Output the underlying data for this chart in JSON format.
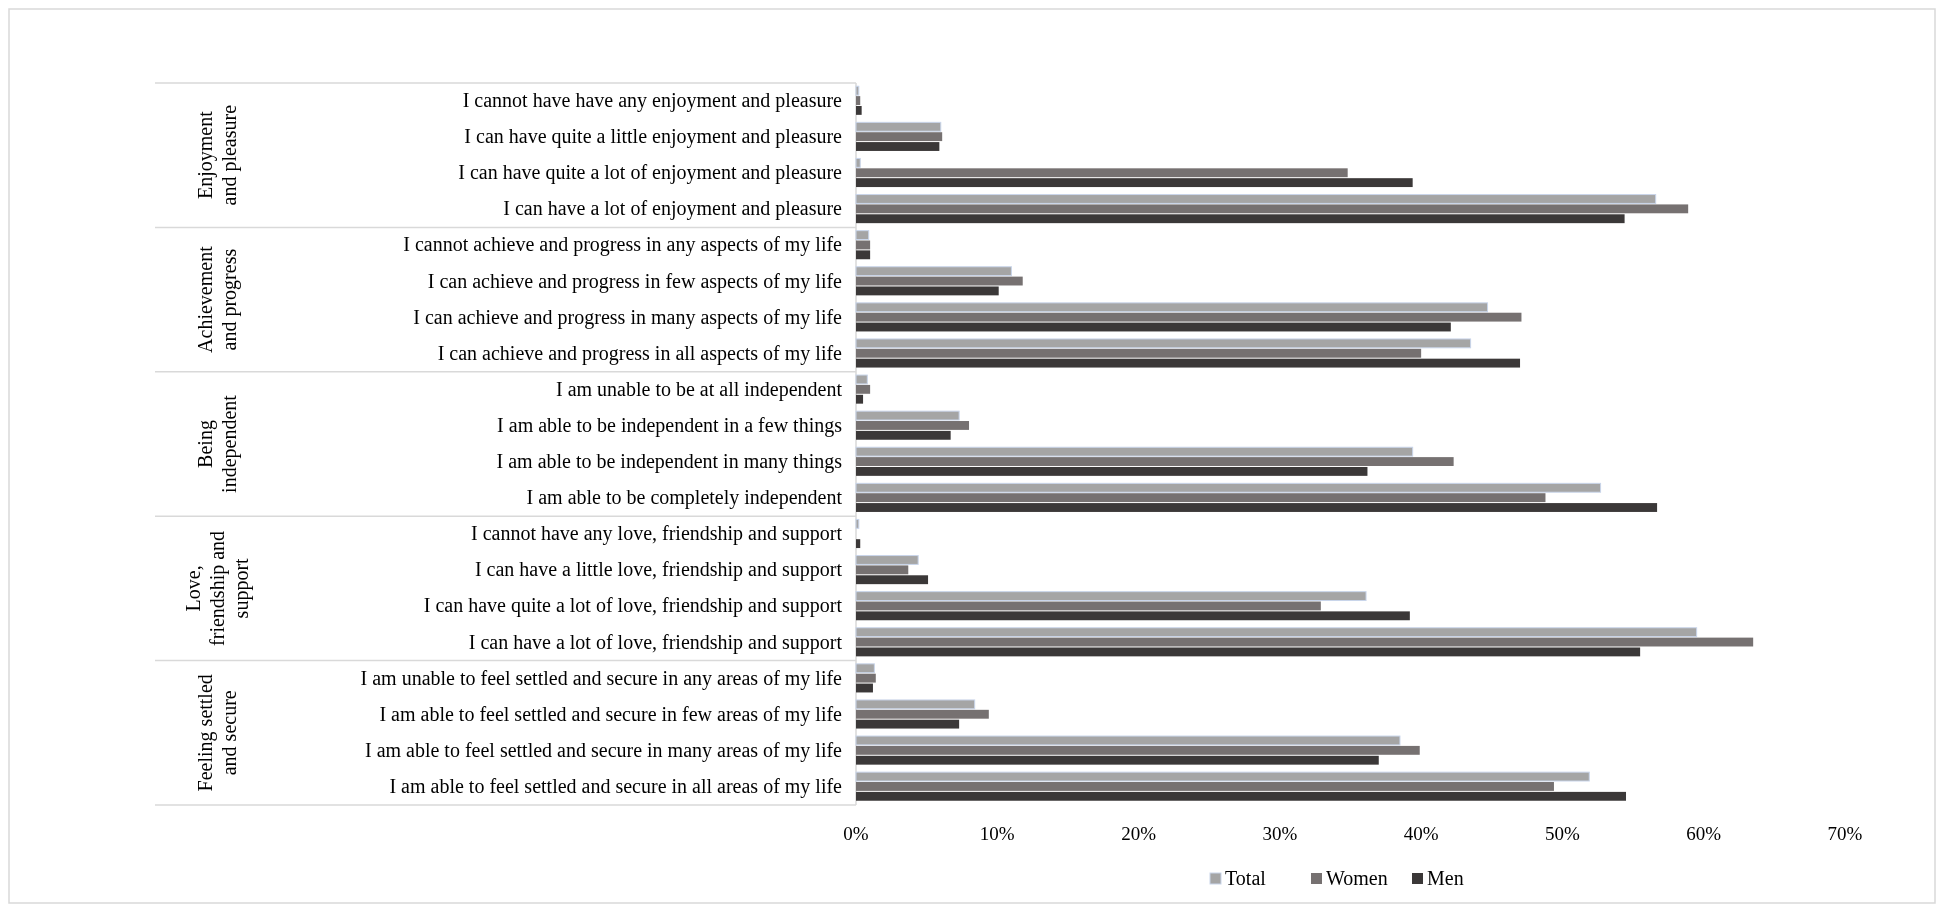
{
  "chart_data": {
    "type": "bar",
    "orientation": "horizontal",
    "categories": [
      "I cannot have have any enjoyment and pleasure",
      "I can have quite a little enjoyment and pleasure",
      "I can have quite a lot of enjoyment and pleasure",
      "I can have a lot of enjoyment and pleasure",
      "I cannot achieve and progress in any aspects of my life",
      "I can achieve and progress in few aspects of my life",
      "I can achieve and progress in many aspects of my life",
      "I can achieve and progress in all aspects of my life",
      "I am unable to be at all independent",
      "I am able to be independent in a few things",
      "I am able to be independent in many things",
      "I am able to be completely independent",
      "I cannot have any love, friendship and support",
      "I can have a little  love, friendship and support",
      "I can have quite a lot of love, friendship and support",
      "I can have a lot of love, friendship and support",
      "I am unable to feel settled and secure in any areas of my life",
      "I am able to feel settled and secure in few areas of my life",
      "I am able to feel settled and secure in many areas of my life",
      "I am able to feel settled and secure in all areas of my life"
    ],
    "series": [
      {
        "name": "Total",
        "color": "#a5a5a5",
        "values": [
          0.2,
          6.0,
          0.3,
          56.6,
          0.9,
          11.0,
          44.7,
          43.5,
          0.8,
          7.3,
          39.4,
          52.7,
          0.2,
          4.4,
          36.1,
          59.5,
          1.3,
          8.4,
          38.5,
          51.9
        ]
      },
      {
        "name": "Women",
        "color": "#767171",
        "values": [
          0.3,
          6.1,
          34.8,
          58.9,
          1.0,
          11.8,
          47.1,
          40.0,
          1.0,
          8.0,
          42.3,
          48.8,
          0,
          3.7,
          32.9,
          63.5,
          1.4,
          9.4,
          39.9,
          49.4
        ]
      },
      {
        "name": "Men",
        "color": "#3b3838",
        "values": [
          0.4,
          5.9,
          39.4,
          54.4,
          1.0,
          10.1,
          42.1,
          47.0,
          0.5,
          6.7,
          36.2,
          56.7,
          0.3,
          5.1,
          39.2,
          55.5,
          1.2,
          7.3,
          37.0,
          54.5
        ]
      }
    ],
    "annotations": [
      "Enjoyment\nand pleasure",
      "Achievement\nand progress",
      "Being\nindependent",
      "Love,\nfriendship and\nsupport",
      "Feeling settled\nand secure"
    ],
    "xlim": [
      0,
      70
    ],
    "xticks": [
      {
        "value": 0,
        "label": "0%"
      },
      {
        "value": 10,
        "label": "10%"
      },
      {
        "value": 20,
        "label": "20%"
      },
      {
        "value": 30,
        "label": "30%"
      },
      {
        "value": 40,
        "label": "40%"
      },
      {
        "value": 50,
        "label": "50%"
      },
      {
        "value": 60,
        "label": "60%"
      },
      {
        "value": 70,
        "label": "70%"
      }
    ],
    "legend": "bottom"
  }
}
